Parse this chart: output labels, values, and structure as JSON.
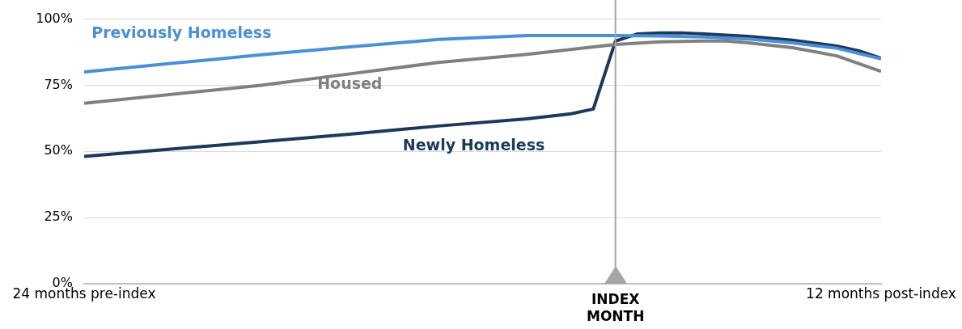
{
  "chart_data": {
    "type": "line",
    "xlim": [
      -24,
      12
    ],
    "xticks": [
      {
        "value": -24,
        "label": "24 months pre-index"
      },
      {
        "value": 12,
        "label": "12 months post-index"
      }
    ],
    "ylim": [
      0,
      100
    ],
    "yticks": [
      {
        "value": 0,
        "label": "0%"
      },
      {
        "value": 25,
        "label": "25%"
      },
      {
        "value": 50,
        "label": "50%"
      },
      {
        "value": 75,
        "label": "75%"
      },
      {
        "value": 100,
        "label": "100%"
      }
    ],
    "grid": "y",
    "legend": false,
    "marker": "none",
    "line_style": "solid",
    "ref_lines": [
      {
        "axis": "x",
        "value": 0,
        "label": "INDEX MONTH",
        "color": "#a6a6a6"
      }
    ],
    "series": [
      {
        "name": "Previously Homeless",
        "color": "#4a90d9",
        "x": [
          -24,
          -20,
          -16,
          -12,
          -8,
          -4,
          0,
          2,
          4,
          6,
          8,
          10,
          12
        ],
        "values": [
          80,
          83.3,
          86.5,
          89.5,
          92.3,
          93.8,
          93.8,
          93.6,
          93.2,
          92.5,
          91,
          89,
          85
        ]
      },
      {
        "name": "Housed",
        "color": "#808080",
        "x": [
          -24,
          -16,
          -12,
          -8,
          -4,
          0,
          2,
          4,
          5,
          6,
          8,
          10,
          12
        ],
        "values": [
          68.2,
          75,
          79.3,
          83.6,
          86.7,
          90.4,
          91.4,
          91.7,
          91.7,
          91,
          89.2,
          86.1,
          80.2
        ]
      },
      {
        "name": "Newly Homeless",
        "color": "#1a3a5c",
        "x": [
          -24,
          -20,
          -16,
          -12,
          -8,
          -4,
          -2,
          -1,
          0,
          1,
          2,
          3,
          4,
          6,
          8,
          10,
          11,
          12
        ],
        "values": [
          48.1,
          50.9,
          53.7,
          56.5,
          59.6,
          62.3,
          64.2,
          66,
          91.7,
          94.4,
          94.8,
          94.8,
          94.4,
          93.5,
          92,
          89.8,
          88,
          85.2
        ]
      }
    ]
  }
}
